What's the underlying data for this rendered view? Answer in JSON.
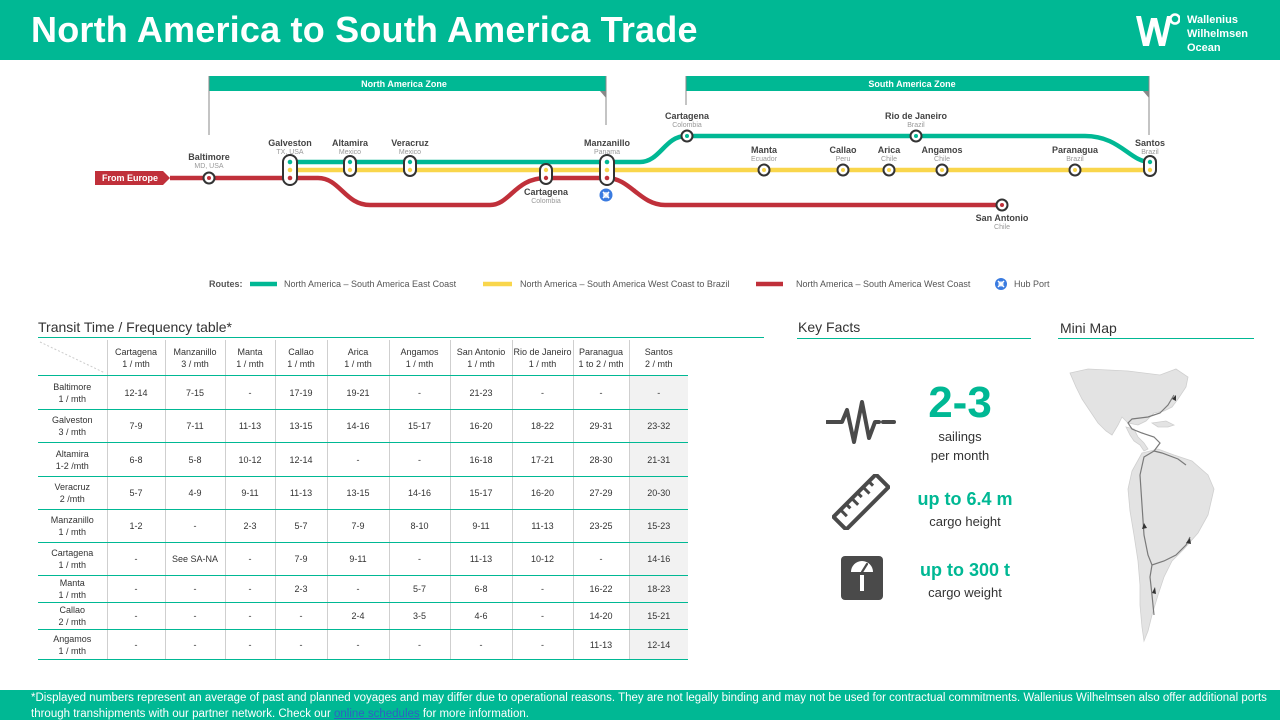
{
  "header": {
    "title": "North America to South America Trade"
  },
  "brand": {
    "line1": "Wallenius",
    "line2": "Wilhelmsen",
    "line3": "Ocean"
  },
  "zones": {
    "north": "North America Zone",
    "south": "South America Zone"
  },
  "origin_tag": "From Europe",
  "stations": {
    "baltimore": {
      "name": "Baltimore",
      "sub": "MD, USA"
    },
    "galveston": {
      "name": "Galveston",
      "sub": "TX, USA"
    },
    "altamira": {
      "name": "Altamira",
      "sub": "Mexico"
    },
    "veracruz": {
      "name": "Veracruz",
      "sub": "Mexico"
    },
    "cartagena_west": {
      "name": "Cartagena",
      "sub": "Colombia"
    },
    "manzanillo": {
      "name": "Manzanillo",
      "sub": "Panama"
    },
    "cartagena_east": {
      "name": "Cartagena",
      "sub": "Colombia"
    },
    "rio": {
      "name": "Rio de Janeiro",
      "sub": "Brazil"
    },
    "santos": {
      "name": "Santos",
      "sub": "Brazil"
    },
    "manta": {
      "name": "Manta",
      "sub": "Ecuador"
    },
    "callao": {
      "name": "Callao",
      "sub": "Peru"
    },
    "arica": {
      "name": "Arica",
      "sub": "Chile"
    },
    "angamos": {
      "name": "Angamos",
      "sub": "Chile"
    },
    "paranagua": {
      "name": "Paranagua",
      "sub": "Brazil"
    },
    "san_antonio": {
      "name": "San Antonio",
      "sub": "Chile"
    }
  },
  "legend": {
    "routes_label": "Routes:",
    "east_coast": "North America – South America East Coast",
    "west_to_brazil": "North America – South America West Coast to Brazil",
    "west_coast": "North America – South America West Coast",
    "hub": "Hub Port"
  },
  "colors": {
    "brand": "#00b894",
    "east": "#00b894",
    "west_brazil": "#f9d64c",
    "west": "#c0303a",
    "hub": "#3a7be0"
  },
  "transit": {
    "title": "Transit Time / Frequency table*",
    "columns": [
      {
        "name": "Cartagena",
        "freq": "1 / mth"
      },
      {
        "name": "Manzanillo",
        "freq": "3 / mth"
      },
      {
        "name": "Manta",
        "freq": "1 / mth"
      },
      {
        "name": "Callao",
        "freq": "1 / mth"
      },
      {
        "name": "Arica",
        "freq": "1 / mth"
      },
      {
        "name": "Angamos",
        "freq": "1 / mth"
      },
      {
        "name": "San Antonio",
        "freq": "1 / mth"
      },
      {
        "name": "Rio de Janeiro",
        "freq": "1 / mth"
      },
      {
        "name": "Paranagua",
        "freq": "1 to 2 / mth"
      },
      {
        "name": "Santos",
        "freq": "2 / mth"
      }
    ],
    "rows": [
      {
        "name": "Baltimore",
        "freq": "1 / mth",
        "cells": [
          "12-14",
          "7-15",
          "-",
          "17-19",
          "19-21",
          "-",
          "21-23",
          "-",
          "-",
          "-"
        ]
      },
      {
        "name": "Galveston",
        "freq": "3 / mth",
        "cells": [
          "7-9",
          "7-11",
          "11-13",
          "13-15",
          "14-16",
          "15-17",
          "16-20",
          "18-22",
          "29-31",
          "23-32"
        ]
      },
      {
        "name": "Altamira",
        "freq": "1-2 /mth",
        "cells": [
          "6-8",
          "5-8",
          "10-12",
          "12-14",
          "-",
          "-",
          "16-18",
          "17-21",
          "28-30",
          "21-31"
        ]
      },
      {
        "name": "Veracruz",
        "freq": "2 /mth",
        "cells": [
          "5-7",
          "4-9",
          "9-11",
          "11-13",
          "13-15",
          "14-16",
          "15-17",
          "16-20",
          "27-29",
          "20-30"
        ]
      },
      {
        "name": "Manzanillo",
        "freq": "1 / mth",
        "cells": [
          "1-2",
          "-",
          "2-3",
          "5-7",
          "7-9",
          "8-10",
          "9-11",
          "11-13",
          "23-25",
          "15-23"
        ]
      },
      {
        "name": "Cartagena",
        "freq": "1 / mth",
        "cells": [
          "-",
          "See SA-NA",
          "-",
          "7-9",
          "9-11",
          "-",
          "11-13",
          "10-12",
          "-",
          "14-16"
        ]
      },
      {
        "name": "Manta",
        "freq": "1 / mth",
        "cells": [
          "-",
          "-",
          "-",
          "2-3",
          "-",
          "5-7",
          "6-8",
          "-",
          "16-22",
          "18-23"
        ]
      },
      {
        "name": "Callao",
        "freq": "2 / mth",
        "cells": [
          "-",
          "-",
          "-",
          "-",
          "2-4",
          "3-5",
          "4-6",
          "-",
          "14-20",
          "15-21"
        ]
      },
      {
        "name": "Angamos",
        "freq": "1 / mth",
        "cells": [
          "-",
          "-",
          "-",
          "-",
          "-",
          "-",
          "-",
          "-",
          "11-13",
          "12-14"
        ]
      }
    ]
  },
  "key_facts": {
    "title": "Key Facts",
    "sailings_value": "2-3",
    "sailings_label_1": "sailings",
    "sailings_label_2": "per month",
    "height_value": "up to 6.4 m",
    "height_label": "cargo height",
    "weight_value": "up to 300 t",
    "weight_label": "cargo weight"
  },
  "mini_map": {
    "title": "Mini Map"
  },
  "footer": {
    "text_before": "*Displayed numbers represent  an average of past and planned voyages and may differ due to operational reasons. They are not legally binding and may not be used for contractual commitments. Wallenius Wilhelmsen also offer additional ports through transhipments with our partner network. Check our ",
    "link": "online schedules",
    "text_after": " for more information."
  }
}
